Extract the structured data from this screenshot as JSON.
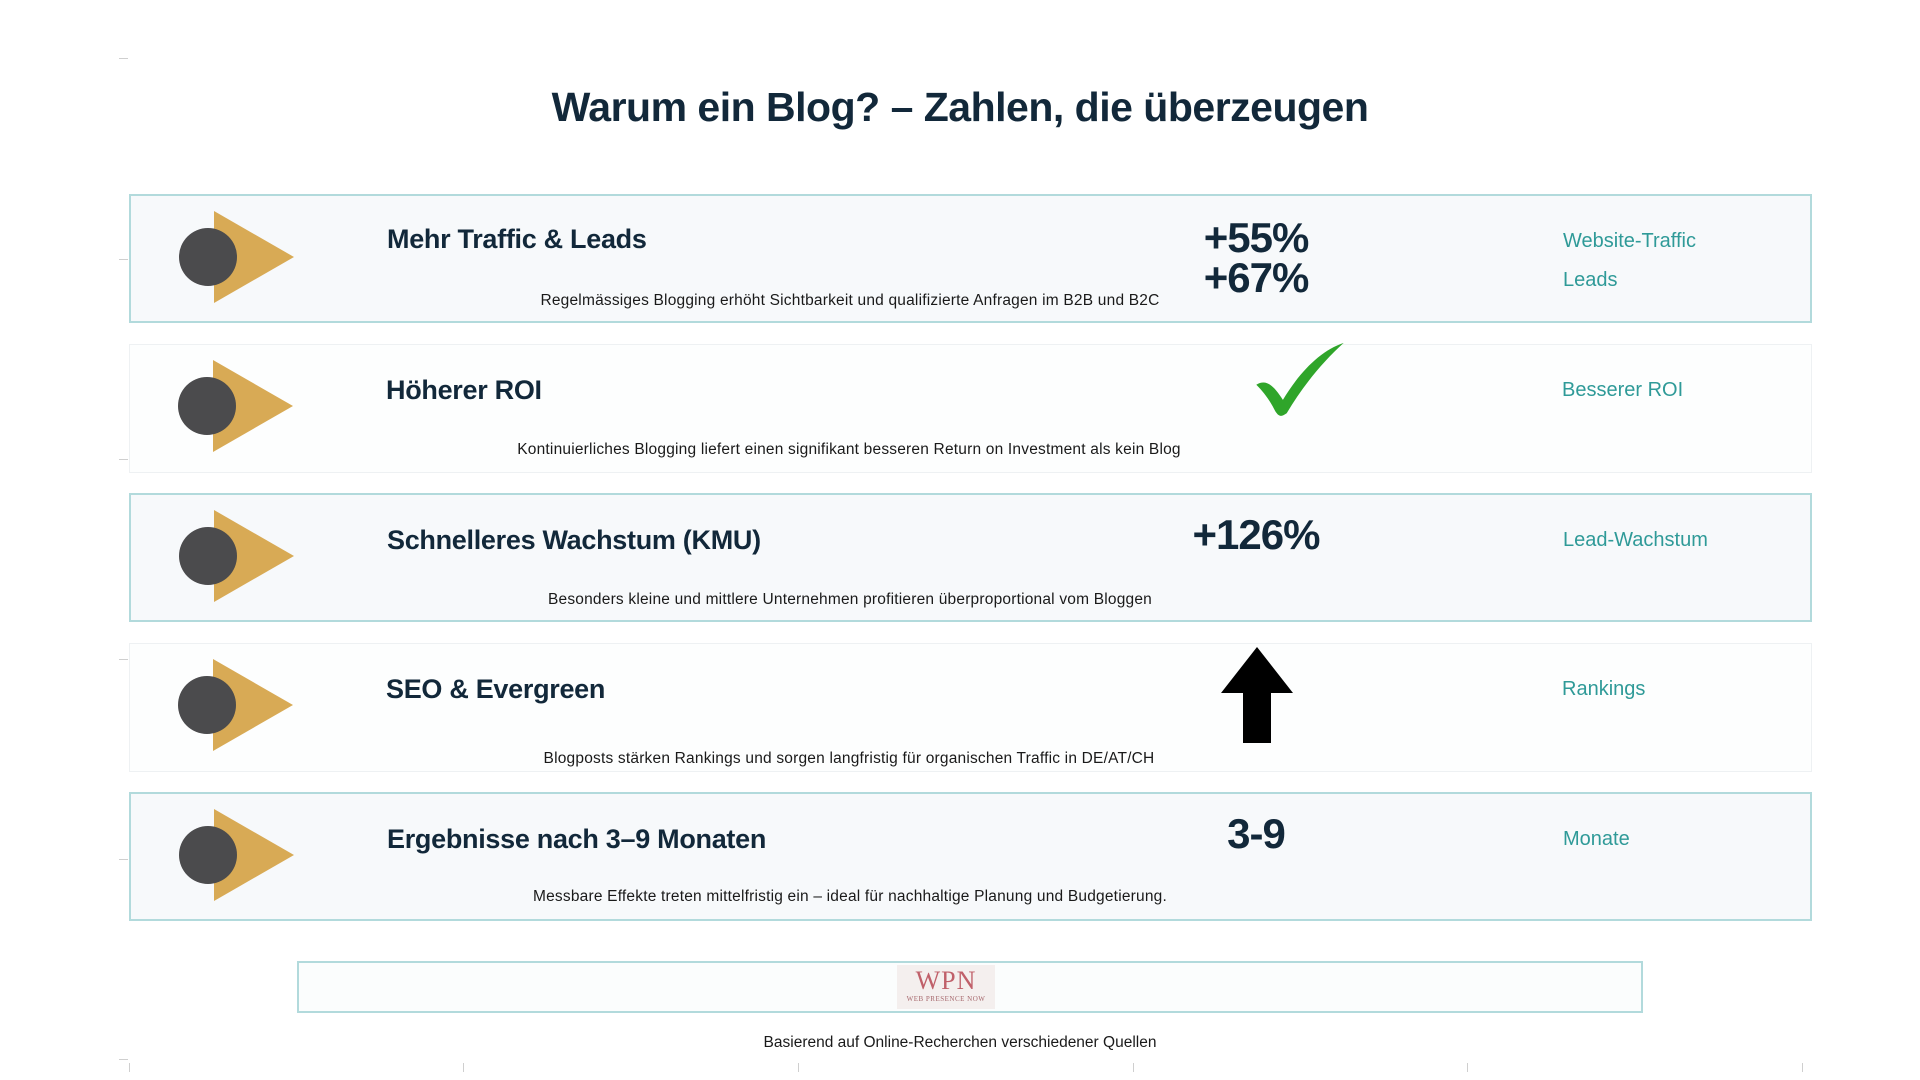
{
  "title": "Warum ein Blog? – Zahlen, die überzeugen",
  "colors": {
    "accent_teal": "#2f9a98",
    "card_border": "#b2dadc",
    "marker_gold": "#d8aa55",
    "marker_circle": "#4b4b4d",
    "check_green": "#2fa52a",
    "heading_navy": "#12283a"
  },
  "cards": [
    {
      "title": "Mehr Traffic & Leads",
      "stats": [
        "+55%",
        "+67%"
      ],
      "labels": [
        "Website-Traffic",
        "Leads"
      ],
      "description": "Regelmässiges Blogging erhöht Sichtbarkeit und qualifizierte Anfragen im B2B und B2C"
    },
    {
      "title": "Höherer ROI",
      "stat_icon": "checkmark-icon",
      "labels": [
        "Besserer ROI"
      ],
      "description": "Kontinuierliches Blogging liefert einen signifikant besseren Return on Investment als kein Blog"
    },
    {
      "title": "Schnelleres Wachstum (KMU)",
      "stats": [
        "+126%"
      ],
      "labels": [
        "Lead-Wachstum"
      ],
      "description": "Besonders kleine und mittlere Unternehmen profitieren überproportional vom Bloggen"
    },
    {
      "title": "SEO & Evergreen",
      "stat_icon": "arrow-up-icon",
      "labels": [
        "Rankings"
      ],
      "description": "Blogposts stärken Rankings und sorgen langfristig für organischen Traffic in DE/AT/CH"
    },
    {
      "title": "Ergebnisse nach 3–9 Monaten",
      "stats": [
        "3-9"
      ],
      "labels": [
        "Monate"
      ],
      "description": "Messbare Effekte treten mittelfristig ein – ideal für nachhaltige Planung und Budgetierung."
    }
  ],
  "footer": {
    "logo_text": "WPN",
    "logo_subtext": "WEB PRESENCE NOW",
    "note": "Basierend auf Online-Recherchen verschiedener Quellen"
  }
}
